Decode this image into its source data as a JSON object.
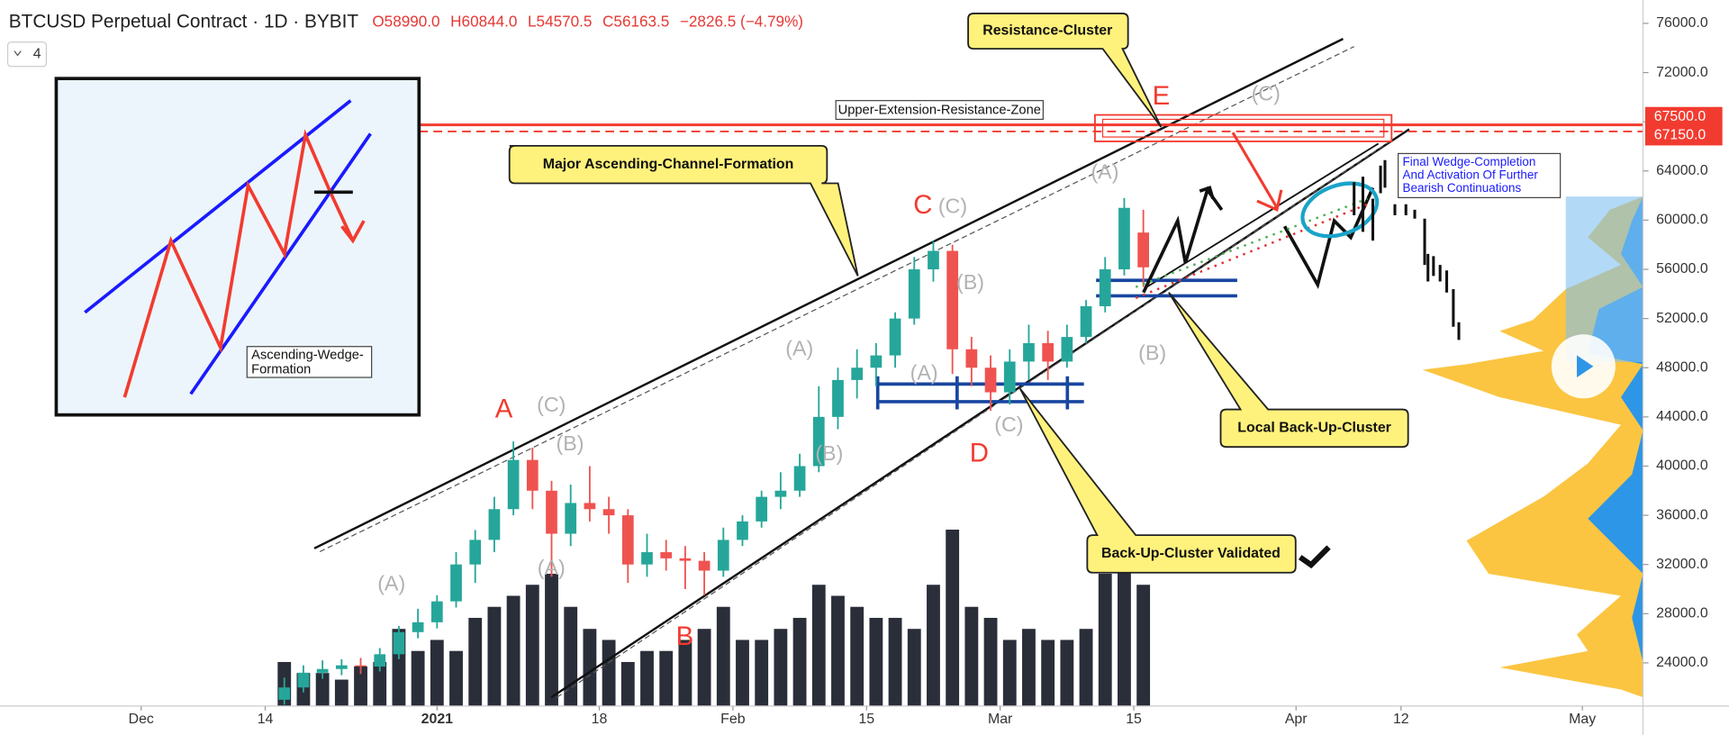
{
  "chart_data": {
    "type": "candlestick",
    "title": "BTCUSD Perpetual Contract · 1D · BYBIT",
    "header_values": [
      "O58990.0",
      "H60844.0",
      "L54570.5",
      "C56163.5",
      "−2826.5 (−4.79%)"
    ],
    "indicator_count": "4",
    "up_color": "#26a69a",
    "down_color": "#ef5350",
    "volume_color": "#2a2e39",
    "level_color": "#f23b30",
    "x": [
      15,
      17,
      19,
      21,
      23,
      25,
      27,
      29,
      31,
      33,
      35,
      37,
      39,
      41,
      43,
      45,
      47,
      49,
      51,
      53,
      55,
      57,
      59,
      61,
      63,
      65,
      67,
      69,
      71,
      73,
      75,
      77,
      79,
      81,
      83,
      85,
      87,
      89,
      91,
      93,
      95,
      97,
      99,
      101,
      103,
      105
    ],
    "open": [
      21000,
      22000,
      23200,
      23500,
      23800,
      23700,
      24700,
      26500,
      27300,
      29000,
      32000,
      34000,
      36500,
      40500,
      38000,
      34500,
      37000,
      36500,
      36000,
      32000,
      33000,
      32500,
      32300,
      31500,
      34000,
      35500,
      37500,
      38000,
      40000,
      44000,
      47000,
      48000,
      49000,
      52000,
      56000,
      57500,
      49500,
      48000,
      46000,
      48500,
      50000,
      48500,
      50500,
      53000,
      56000,
      58990
    ],
    "high": [
      22800,
      23800,
      24200,
      24300,
      24400,
      25200,
      27000,
      28400,
      29500,
      33000,
      34800,
      37500,
      42000,
      41500,
      38800,
      38500,
      40000,
      37500,
      36500,
      34500,
      34000,
      33500,
      33000,
      35000,
      36000,
      38000,
      39500,
      41000,
      46500,
      48000,
      49500,
      50000,
      52500,
      57000,
      58300,
      58000,
      50500,
      49000,
      49500,
      51500,
      51000,
      51500,
      53500,
      57000,
      61800,
      60844
    ],
    "low": [
      20600,
      21600,
      22700,
      23000,
      23100,
      23300,
      24300,
      26000,
      26800,
      28500,
      30500,
      33000,
      36000,
      36500,
      31000,
      33500,
      35500,
      34500,
      30500,
      31000,
      31500,
      30000,
      29500,
      31000,
      33500,
      35000,
      36500,
      37500,
      39500,
      43000,
      45500,
      46500,
      48000,
      51500,
      55000,
      47500,
      46500,
      44500,
      45000,
      47000,
      47000,
      48000,
      50000,
      52500,
      55500,
      54570.5
    ],
    "close": [
      22000,
      23200,
      23500,
      23800,
      23700,
      24700,
      26500,
      27300,
      29000,
      32000,
      34000,
      36500,
      40500,
      38000,
      34500,
      37000,
      36500,
      36000,
      32000,
      33000,
      32500,
      32300,
      31500,
      34000,
      35500,
      37500,
      38000,
      40000,
      44000,
      47000,
      48000,
      49000,
      52000,
      56000,
      57500,
      49500,
      48000,
      46000,
      48500,
      50000,
      48500,
      50500,
      53000,
      56000,
      61000,
      56163.5
    ],
    "volume": [
      20,
      15,
      15,
      12,
      18,
      20,
      35,
      25,
      30,
      25,
      40,
      45,
      50,
      55,
      60,
      45,
      35,
      30,
      20,
      25,
      25,
      30,
      35,
      45,
      30,
      30,
      35,
      40,
      55,
      50,
      45,
      40,
      40,
      35,
      55,
      80,
      45,
      40,
      30,
      35,
      30,
      30,
      35,
      60,
      70,
      55
    ],
    "volume_lim": [
      0,
      100
    ],
    "xlim": [
      -14.79,
      157.35
    ],
    "xticks": [
      {
        "value": 0,
        "label": "Dec"
      },
      {
        "value": 13,
        "label": "14"
      },
      {
        "value": 31,
        "label": "2021"
      },
      {
        "value": 48,
        "label": "18"
      },
      {
        "value": 62,
        "label": "Feb"
      },
      {
        "value": 76,
        "label": "15"
      },
      {
        "value": 90,
        "label": "Mar"
      },
      {
        "value": 104,
        "label": "15"
      },
      {
        "value": 121,
        "label": "Apr"
      },
      {
        "value": 132,
        "label": "12"
      },
      {
        "value": 151,
        "label": "May"
      }
    ],
    "ylim": [
      20484,
      77883
    ],
    "yticks": [
      {
        "value": 24000,
        "label": "24000.0"
      },
      {
        "value": 28000,
        "label": "28000.0"
      },
      {
        "value": 32000,
        "label": "32000.0"
      },
      {
        "value": 36000,
        "label": "36000.0"
      },
      {
        "value": 40000,
        "label": "40000.0"
      },
      {
        "value": 44000,
        "label": "44000.0"
      },
      {
        "value": 48000,
        "label": "48000.0"
      },
      {
        "value": 52000,
        "label": "52000.0"
      },
      {
        "value": 56000,
        "label": "56000.0"
      },
      {
        "value": 60000,
        "label": "60000.0"
      },
      {
        "value": 64000,
        "label": "64000.0"
      },
      {
        "value": 68000,
        "label": "68000.0"
      },
      {
        "value": 72000,
        "label": "72000.0"
      },
      {
        "value": 76000,
        "label": "76000.0"
      }
    ],
    "levels": [
      {
        "value": 67500,
        "label": "67500.0"
      },
      {
        "value": 67150,
        "label": "67150.0"
      }
    ],
    "annotations": {
      "resistance_cluster": "Resistance-Cluster",
      "upper_zone": "Upper-Extension-Resistance-Zone",
      "channel": "Major Ascending-Channel-Formation",
      "wedge_label": [
        "Ascending-Wedge-",
        "Formation"
      ],
      "local_backup": "Local Back-Up-Cluster",
      "backup_validated": "Back-Up-Cluster Validated",
      "final_note": [
        "Final Wedge-Completion",
        "And Activation Of Further",
        "Bearish Continuations"
      ],
      "waves": [
        "A",
        "(C)",
        "(B)",
        "(A)",
        "(A)",
        "B",
        "(A)",
        "(B)",
        "C",
        "(C)",
        "(B)",
        "(A)",
        "D",
        "(C)",
        "(A)",
        "E",
        "(C)",
        "(B)"
      ]
    }
  }
}
